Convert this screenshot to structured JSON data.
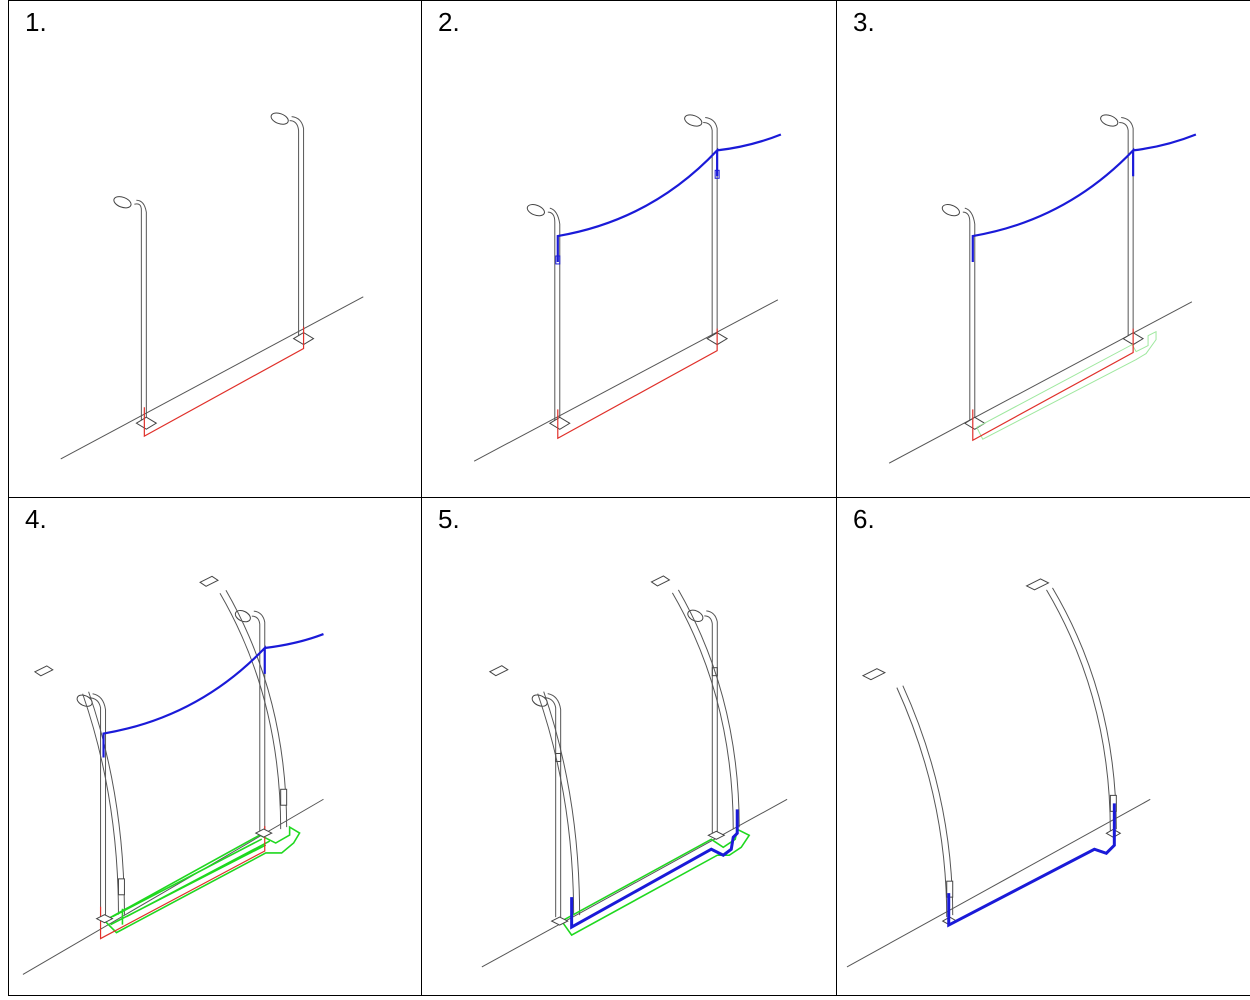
{
  "steps": [
    {
      "label": "1."
    },
    {
      "label": "2."
    },
    {
      "label": "3."
    },
    {
      "label": "4."
    },
    {
      "label": "5."
    },
    {
      "label": "6."
    }
  ],
  "colors": {
    "existing_cable": "#e0302a",
    "overhead_and_new_cable": "#1a1ad8",
    "trench": "#1fd81f",
    "trench_faint": "#9fe89f",
    "linework": "#555555"
  }
}
